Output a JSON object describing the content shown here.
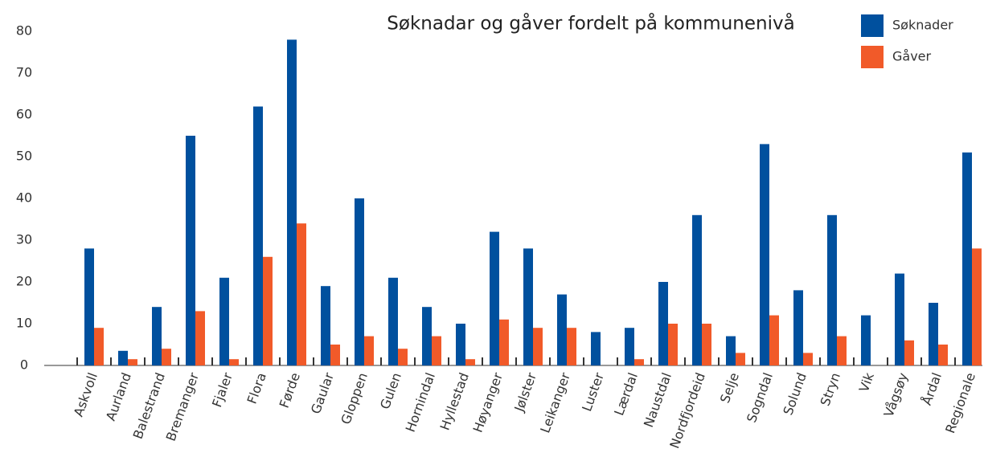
{
  "chart_data": {
    "type": "bar",
    "title": "Søknadar og gåver fordelt på kommunenivå",
    "categories": [
      "Askvoll",
      "Aurland",
      "Balestrand",
      "Bremanger",
      "Fjaler",
      "Flora",
      "Førde",
      "Gaular",
      "Gloppen",
      "Gulen",
      "Hornindal",
      "Hyllestad",
      "Høyanger",
      "Jølster",
      "Leikanger",
      "Luster",
      "Lærdal",
      "Naustdal",
      "Nordfjordeid",
      "Selje",
      "Sogndal",
      "Solund",
      "Stryn",
      "Vik",
      "Vågsøy",
      "Årdal",
      "Regionale"
    ],
    "series": [
      {
        "name": "Søknader",
        "color": "#00509e",
        "values": [
          28,
          3.5,
          14,
          55,
          21,
          62,
          78,
          19,
          40,
          21,
          14,
          10,
          32,
          28,
          17,
          8,
          9,
          20,
          36,
          7,
          53,
          18,
          36,
          12,
          22,
          15,
          51
        ]
      },
      {
        "name": "Gåver",
        "color": "#f15a29",
        "values": [
          9,
          1.5,
          4,
          13,
          1.5,
          26,
          34,
          5,
          7,
          4,
          7,
          1.5,
          11,
          9,
          9,
          0,
          1.5,
          10,
          10,
          3,
          12,
          3,
          7,
          0,
          6,
          5,
          28
        ]
      }
    ],
    "ylim": [
      0,
      80
    ],
    "yticks": [
      0,
      10,
      20,
      30,
      40,
      50,
      60,
      70,
      80
    ],
    "grid": false,
    "legend": "top-right"
  }
}
